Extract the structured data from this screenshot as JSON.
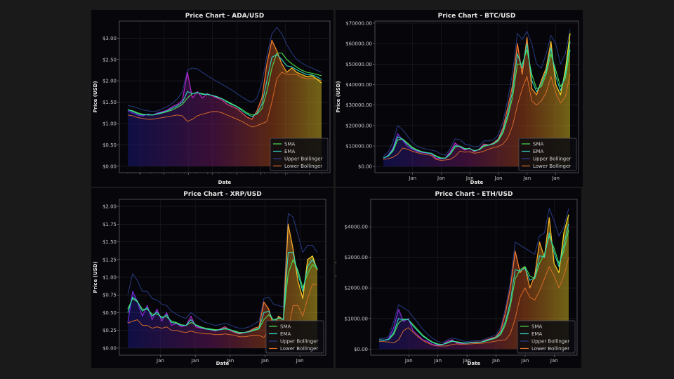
{
  "chart_data": [
    {
      "type": "line",
      "title": "Price Chart - ADA/USD",
      "xlabel": "Date",
      "ylabel": "Price (USD)",
      "yticks": [
        "$0.00",
        "$0.50",
        "$1.00",
        "$1.50",
        "$2.00",
        "$2.50",
        "$3.00"
      ],
      "ytick_values": [
        0,
        0.5,
        1,
        1.5,
        2,
        2.5,
        3
      ],
      "ylim": [
        -0.15,
        3.4
      ],
      "xticks": [],
      "grid": true,
      "legend": "bottom-right",
      "series_names": [
        "SMA",
        "EMA",
        "Upper Bollinger",
        "Lower Bollinger"
      ],
      "price": [
        1.3,
        1.25,
        1.2,
        1.18,
        1.22,
        1.2,
        1.25,
        1.28,
        1.32,
        1.4,
        1.45,
        1.55,
        2.2,
        1.6,
        1.75,
        1.6,
        1.7,
        1.65,
        1.6,
        1.55,
        1.45,
        1.4,
        1.35,
        1.25,
        1.15,
        1.1,
        1.3,
        1.6,
        2.4,
        2.95,
        2.7,
        2.4,
        2.2,
        2.3,
        2.2,
        2.15,
        2.1,
        2.12,
        2.05,
        1.95
      ],
      "sma": [
        1.32,
        1.3,
        1.25,
        1.22,
        1.2,
        1.2,
        1.22,
        1.25,
        1.28,
        1.32,
        1.38,
        1.45,
        1.6,
        1.7,
        1.72,
        1.7,
        1.68,
        1.66,
        1.63,
        1.58,
        1.52,
        1.46,
        1.4,
        1.33,
        1.25,
        1.2,
        1.22,
        1.35,
        1.75,
        2.3,
        2.65,
        2.65,
        2.5,
        2.4,
        2.32,
        2.25,
        2.2,
        2.18,
        2.15,
        2.12
      ],
      "ema": [
        1.33,
        1.28,
        1.23,
        1.2,
        1.21,
        1.2,
        1.23,
        1.26,
        1.3,
        1.36,
        1.42,
        1.5,
        1.75,
        1.7,
        1.73,
        1.68,
        1.69,
        1.66,
        1.62,
        1.58,
        1.5,
        1.44,
        1.39,
        1.3,
        1.22,
        1.16,
        1.24,
        1.45,
        2.0,
        2.55,
        2.62,
        2.5,
        2.35,
        2.33,
        2.26,
        2.2,
        2.15,
        2.14,
        2.1,
        2.03
      ],
      "upper": [
        1.42,
        1.4,
        1.36,
        1.32,
        1.3,
        1.28,
        1.3,
        1.35,
        1.4,
        1.48,
        1.58,
        1.75,
        2.25,
        2.3,
        2.28,
        2.2,
        2.12,
        2.05,
        1.98,
        1.92,
        1.85,
        1.78,
        1.7,
        1.62,
        1.55,
        1.5,
        1.6,
        1.95,
        2.6,
        3.1,
        3.25,
        3.1,
        2.85,
        2.65,
        2.5,
        2.42,
        2.35,
        2.3,
        2.25,
        2.2
      ],
      "lower": [
        1.2,
        1.18,
        1.14,
        1.12,
        1.1,
        1.1,
        1.12,
        1.14,
        1.16,
        1.18,
        1.2,
        1.18,
        1.05,
        1.1,
        1.18,
        1.22,
        1.25,
        1.28,
        1.28,
        1.25,
        1.2,
        1.15,
        1.1,
        1.05,
        0.98,
        0.92,
        0.95,
        1.0,
        1.05,
        1.5,
        2.05,
        2.2,
        2.15,
        2.15,
        2.15,
        2.08,
        2.05,
        2.05,
        2.05,
        2.0
      ]
    },
    {
      "type": "line",
      "title": "Price Chart - BTC/USD",
      "xlabel": "Date",
      "ylabel": "Price (USD)",
      "yticks": [
        "$0.00",
        "$10000.00",
        "$20000.00",
        "$30000.00",
        "$40000.00",
        "$50000.00",
        "$60000.00",
        "$70000.00"
      ],
      "ytick_values": [
        0,
        10000,
        20000,
        30000,
        40000,
        50000,
        60000,
        70000
      ],
      "ylim": [
        -3000,
        71000
      ],
      "xticks": [
        "Jan",
        "Jan",
        "Jan",
        "Jan",
        "Jan",
        "Jan"
      ],
      "grid": true,
      "legend": "bottom-right",
      "series_names": [
        "SMA",
        "EMA",
        "Upper Bollinger",
        "Lower Bollinger"
      ],
      "price": [
        4000,
        5500,
        9000,
        16000,
        13000,
        10000,
        8500,
        7500,
        6800,
        6500,
        6300,
        4000,
        3800,
        4200,
        7500,
        11500,
        9500,
        8000,
        9000,
        7200,
        8500,
        11000,
        10500,
        11500,
        13500,
        19000,
        29000,
        40000,
        60000,
        45000,
        63000,
        38000,
        35000,
        42000,
        48000,
        61000,
        40000,
        35000,
        47000,
        65000
      ],
      "sma": [
        4200,
        5000,
        7500,
        13000,
        13500,
        11500,
        9500,
        8200,
        7300,
        6800,
        6500,
        5200,
        4200,
        4100,
        6000,
        9500,
        10000,
        8800,
        8700,
        7800,
        8100,
        9800,
        10400,
        11000,
        12500,
        16500,
        24000,
        34000,
        50000,
        50000,
        57000,
        45000,
        38000,
        39000,
        45000,
        55000,
        47000,
        39000,
        43000,
        57000
      ],
      "ema": [
        4100,
        5200,
        8200,
        14500,
        13300,
        11000,
        9000,
        7900,
        7100,
        6700,
        6400,
        4800,
        4000,
        4150,
        6500,
        10200,
        9800,
        8500,
        8800,
        7600,
        8300,
        10200,
        10500,
        11200,
        13000,
        17500,
        26000,
        37000,
        55000,
        48000,
        60000,
        42000,
        36500,
        40500,
        46500,
        58000,
        44000,
        37000,
        45000,
        61000
      ],
      "upper": [
        5000,
        7000,
        12000,
        20000,
        18000,
        15000,
        12000,
        10000,
        9000,
        8500,
        8000,
        7500,
        6000,
        5500,
        9000,
        13500,
        13000,
        11000,
        10500,
        9500,
        10000,
        12500,
        12500,
        13000,
        15500,
        22000,
        33000,
        46000,
        65000,
        62000,
        66000,
        60000,
        50000,
        48000,
        55000,
        64000,
        60000,
        50000,
        55000,
        67000
      ],
      "lower": [
        3500,
        3800,
        4500,
        6000,
        9000,
        8500,
        7500,
        6800,
        6200,
        5800,
        5500,
        3500,
        3000,
        3200,
        3500,
        5000,
        7500,
        7000,
        7200,
        6500,
        6800,
        7500,
        8500,
        9200,
        9800,
        11000,
        14000,
        20000,
        30000,
        38000,
        44000,
        32000,
        30000,
        32000,
        36000,
        44000,
        36000,
        31000,
        34000,
        45000
      ]
    },
    {
      "type": "line",
      "title": "Price Chart - XRP/USD",
      "xlabel": "Date",
      "ylabel": "Price (USD)",
      "yticks": [
        "$0.00",
        "$0.25",
        "$0.50",
        "$0.75",
        "$1.00",
        "$1.25",
        "$1.50",
        "$1.75",
        "$2.00"
      ],
      "ytick_values": [
        0,
        0.25,
        0.5,
        0.75,
        1,
        1.25,
        1.5,
        1.75,
        2
      ],
      "ylim": [
        -0.1,
        2.1
      ],
      "xticks": [
        "Jan",
        "Jan",
        "Jan",
        "Jan",
        "Jan"
      ],
      "grid": true,
      "legend": "bottom-right",
      "series_names": [
        "SMA",
        "EMA",
        "Upper Bollinger",
        "Lower Bollinger"
      ],
      "price": [
        0.35,
        0.8,
        0.65,
        0.45,
        0.6,
        0.4,
        0.55,
        0.38,
        0.5,
        0.32,
        0.35,
        0.3,
        0.32,
        0.45,
        0.3,
        0.28,
        0.27,
        0.26,
        0.24,
        0.27,
        0.3,
        0.25,
        0.22,
        0.2,
        0.22,
        0.24,
        0.28,
        0.3,
        0.65,
        0.55,
        0.3,
        0.45,
        0.4,
        1.75,
        1.4,
        0.95,
        0.7,
        1.25,
        1.3,
        1.1
      ],
      "sma": [
        0.55,
        0.7,
        0.65,
        0.55,
        0.55,
        0.48,
        0.48,
        0.44,
        0.44,
        0.38,
        0.36,
        0.33,
        0.32,
        0.36,
        0.33,
        0.3,
        0.28,
        0.27,
        0.26,
        0.26,
        0.27,
        0.26,
        0.24,
        0.22,
        0.22,
        0.23,
        0.25,
        0.27,
        0.4,
        0.47,
        0.4,
        0.42,
        0.41,
        1.05,
        1.25,
        1.1,
        0.85,
        1.05,
        1.18,
        1.12
      ],
      "ema": [
        0.5,
        0.72,
        0.66,
        0.52,
        0.57,
        0.45,
        0.51,
        0.42,
        0.47,
        0.36,
        0.35,
        0.32,
        0.32,
        0.4,
        0.32,
        0.29,
        0.27,
        0.26,
        0.25,
        0.26,
        0.28,
        0.26,
        0.23,
        0.21,
        0.22,
        0.23,
        0.26,
        0.28,
        0.5,
        0.52,
        0.38,
        0.43,
        0.4,
        1.35,
        1.35,
        1.05,
        0.8,
        1.15,
        1.25,
        1.12
      ],
      "upper": [
        0.75,
        1.05,
        0.95,
        0.8,
        0.8,
        0.7,
        0.68,
        0.62,
        0.6,
        0.52,
        0.48,
        0.44,
        0.42,
        0.5,
        0.45,
        0.4,
        0.36,
        0.34,
        0.32,
        0.33,
        0.35,
        0.33,
        0.3,
        0.28,
        0.28,
        0.3,
        0.34,
        0.38,
        0.7,
        0.72,
        0.62,
        0.6,
        0.58,
        1.9,
        1.85,
        1.6,
        1.35,
        1.45,
        1.45,
        1.35
      ],
      "lower": [
        0.35,
        0.38,
        0.4,
        0.32,
        0.32,
        0.28,
        0.3,
        0.28,
        0.3,
        0.25,
        0.25,
        0.23,
        0.22,
        0.24,
        0.22,
        0.21,
        0.2,
        0.2,
        0.19,
        0.19,
        0.2,
        0.19,
        0.18,
        0.16,
        0.16,
        0.17,
        0.18,
        0.18,
        0.15,
        0.25,
        0.2,
        0.25,
        0.25,
        0.25,
        0.6,
        0.6,
        0.45,
        0.7,
        0.9,
        0.9
      ]
    },
    {
      "type": "line",
      "title": "Price Chart - ETH/USD",
      "xlabel": "Date",
      "ylabel": "Price (USD)",
      "yticks": [
        "$0.00",
        "$1000.00",
        "$2000.00",
        "$3000.00",
        "$4000.00"
      ],
      "ytick_values": [
        0,
        1000,
        2000,
        3000,
        4000
      ],
      "ylim": [
        -200,
        4900
      ],
      "xticks": [
        "Jan",
        "Jan",
        "Jan",
        "Jan",
        "Jan",
        "Jan"
      ],
      "grid": true,
      "legend": "bottom-right",
      "series_names": [
        "SMA",
        "EMA",
        "Upper Bollinger",
        "Lower Bollinger"
      ],
      "price": [
        300,
        280,
        350,
        700,
        1300,
        900,
        1000,
        600,
        450,
        300,
        250,
        150,
        120,
        140,
        250,
        300,
        200,
        180,
        190,
        220,
        230,
        230,
        300,
        350,
        400,
        600,
        1200,
        2000,
        3200,
        2500,
        2700,
        2000,
        2400,
        3500,
        3000,
        4300,
        2800,
        2500,
        3800,
        4400
      ],
      "sma": [
        300,
        290,
        310,
        480,
        850,
        980,
        960,
        800,
        620,
        450,
        330,
        230,
        170,
        150,
        190,
        250,
        240,
        210,
        195,
        205,
        215,
        225,
        260,
        310,
        360,
        470,
        800,
        1400,
        2300,
        2600,
        2700,
        2400,
        2300,
        2800,
        3100,
        3700,
        3300,
        2800,
        3200,
        3900
      ],
      "ema": [
        300,
        290,
        320,
        540,
        1000,
        950,
        970,
        750,
        580,
        420,
        310,
        210,
        150,
        145,
        210,
        270,
        225,
        195,
        192,
        210,
        222,
        228,
        275,
        325,
        375,
        520,
        900,
        1550,
        2600,
        2550,
        2650,
        2250,
        2330,
        3050,
        3020,
        3800,
        3150,
        2700,
        3400,
        4100
      ],
      "upper": [
        350,
        340,
        420,
        900,
        1450,
        1350,
        1250,
        1050,
        850,
        650,
        480,
        350,
        250,
        200,
        300,
        360,
        330,
        280,
        240,
        260,
        270,
        270,
        340,
        400,
        460,
        700,
        1350,
        2200,
        3500,
        3400,
        3300,
        3200,
        3100,
        3700,
        3800,
        4600,
        4200,
        3700,
        4000,
        4600
      ],
      "lower": [
        250,
        240,
        230,
        200,
        300,
        600,
        700,
        550,
        400,
        280,
        200,
        130,
        100,
        100,
        100,
        150,
        170,
        150,
        160,
        170,
        180,
        190,
        200,
        230,
        260,
        280,
        300,
        500,
        1000,
        1700,
        2000,
        1700,
        1600,
        1900,
        2300,
        2700,
        2400,
        2000,
        2400,
        3000
      ]
    }
  ]
}
